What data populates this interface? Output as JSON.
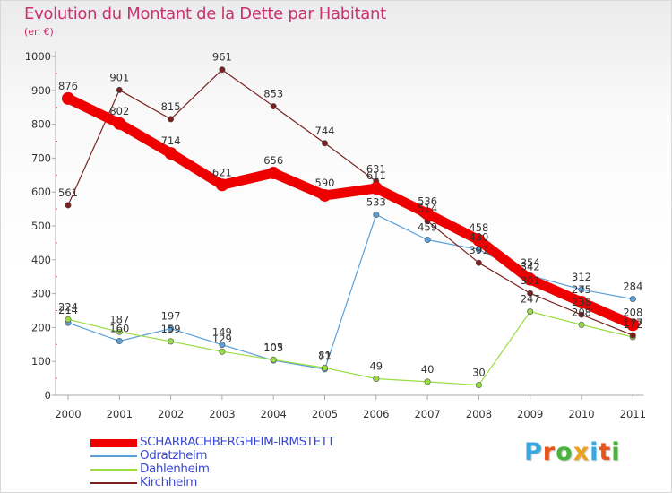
{
  "chart_data": {
    "type": "line",
    "title": "Evolution du Montant de la Dette par Habitant",
    "subtitle": "(en €)",
    "x": [
      "2000",
      "2001",
      "2002",
      "2003",
      "2004",
      "2005",
      "2006",
      "2007",
      "2008",
      "2009",
      "2010",
      "2011"
    ],
    "ylim": [
      0,
      1000
    ],
    "yticks": [
      0,
      100,
      200,
      300,
      400,
      500,
      600,
      700,
      800,
      900,
      1000
    ],
    "grid": false,
    "legend_position": "bottom-left",
    "series": [
      {
        "name": "SCHARRACHBERGHEIM-IRMSTETT",
        "color": "#ee0000",
        "values": [
          876,
          802,
          714,
          621,
          656,
          590,
          611,
          536,
          458,
          342,
          275,
          208
        ]
      },
      {
        "name": "Odratzheim",
        "color": "#5a9fd8",
        "values": [
          214,
          160,
          197,
          149,
          103,
          77,
          533,
          459,
          430,
          354,
          312,
          284
        ]
      },
      {
        "name": "Dahlenheim",
        "color": "#99dd44",
        "values": [
          224,
          187,
          159,
          129,
          105,
          81,
          49,
          40,
          30,
          247,
          208,
          172
        ]
      },
      {
        "name": "Kirchheim",
        "color": "#7a2020",
        "values": [
          561,
          901,
          815,
          961,
          853,
          744,
          631,
          514,
          391,
          301,
          238,
          177
        ]
      }
    ]
  },
  "logo": {
    "text": "Proxiti",
    "letter_colors": [
      "#3aa8e0",
      "#e8541c",
      "#49b33e",
      "#f0a020",
      "#3aa8e0",
      "#e8541c",
      "#49b33e"
    ]
  }
}
